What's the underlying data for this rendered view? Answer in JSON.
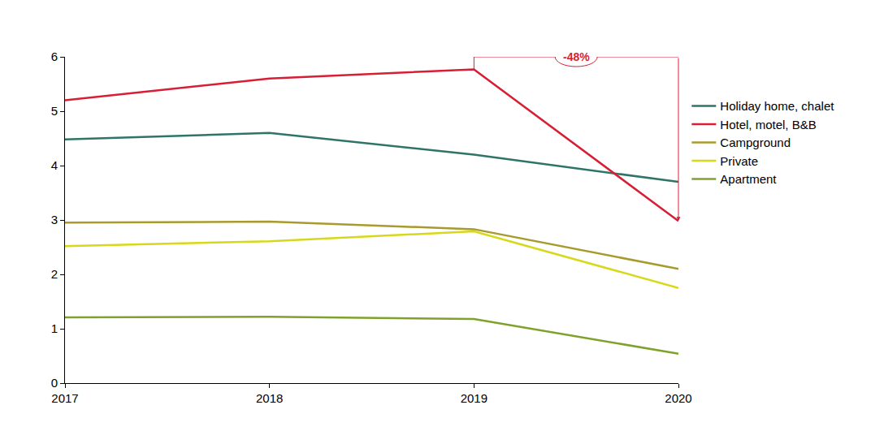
{
  "chart_data": {
    "type": "line",
    "x": [
      2017,
      2018,
      2019,
      2020
    ],
    "xlim": [
      2017,
      2020
    ],
    "xticks": [
      2017,
      2018,
      2019,
      2020
    ],
    "ylim": [
      0,
      6
    ],
    "yticks": [
      0,
      1,
      2,
      3,
      4,
      5,
      6
    ],
    "grid": false,
    "legend": "right",
    "series": [
      {
        "name": "Holiday home, chalet",
        "color": "#2e7468",
        "values": [
          4.48,
          4.6,
          4.2,
          3.7
        ]
      },
      {
        "name": "Hotel, motel, B&B",
        "color": "#d81e34",
        "values": [
          5.2,
          5.6,
          5.77,
          2.98
        ]
      },
      {
        "name": "Campground",
        "color": "#a89a2c",
        "values": [
          2.95,
          2.97,
          2.83,
          2.1
        ]
      },
      {
        "name": "Private",
        "color": "#d8d81a",
        "values": [
          2.52,
          2.61,
          2.79,
          1.75
        ]
      },
      {
        "name": "Apartment",
        "color": "#7fa22c",
        "values": [
          1.21,
          1.22,
          1.18,
          0.54
        ]
      }
    ],
    "annotations": [
      {
        "text": "-48%",
        "series": "Hotel, motel, B&B",
        "from": 2019,
        "to": 2020
      }
    ]
  }
}
